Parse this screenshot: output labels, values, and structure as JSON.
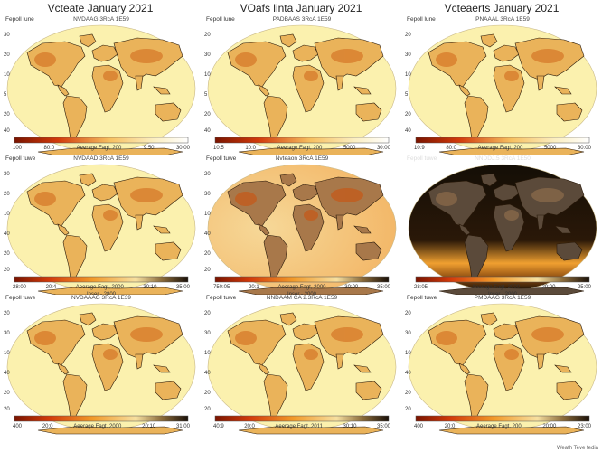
{
  "titles": [
    "Vcteate January 2021",
    "VOafs linta January 2021",
    "Vcteaerts January 2021"
  ],
  "credit": "Weath Teve fedia",
  "panels": [
    {
      "label": "Fepoll lune",
      "code": "NVDAAG 3RcA 1E59",
      "lat": [
        "30",
        "20",
        "10",
        "5",
        "20",
        "40"
      ],
      "ticks": [
        "100",
        "80:0",
        "Aeerage Fagt, 200",
        "9:50",
        "30:00"
      ],
      "sub": "",
      "theme": "light"
    },
    {
      "label": "Fepoll lune",
      "code": "PADBAAS 3RcA 1E59",
      "lat": [
        "20",
        "30",
        "10",
        "5",
        "20",
        "40"
      ],
      "ticks": [
        "10:5",
        "10:0",
        "Aeerage Fagt, 200",
        "5000",
        "30:00"
      ],
      "sub": "",
      "theme": "light"
    },
    {
      "label": "Fepoll lune",
      "code": "PNAAAL 3RcA 1E59",
      "lat": [
        "20",
        "30",
        "10",
        "5",
        "20",
        "40"
      ],
      "ticks": [
        "10:9",
        "80:0",
        "Aeerage Fagt, 200",
        "5000",
        "30:00"
      ],
      "sub": "",
      "theme": "light"
    },
    {
      "label": "Fepoll tuwe",
      "code": "NVDAAD 3RcA 1E59",
      "lat": [
        "30",
        "20",
        "10",
        "40",
        "20",
        "20"
      ],
      "ticks": [
        "28:00",
        "20:4",
        "Aeerage Fagt, 2000",
        "30:10",
        "35:00"
      ],
      "sub": "Inser - 2800",
      "theme": "light"
    },
    {
      "label": "Fepoll tuwe",
      "code": "Nvteaon 3RcA 1E59",
      "lat": [
        "20",
        "30",
        "10",
        "40",
        "20",
        "20"
      ],
      "ticks": [
        "750:05",
        "20:1",
        "Aeerage Fagt, 2000",
        "30:00",
        "35:00"
      ],
      "sub": "Inser - 2000",
      "theme": "warm"
    },
    {
      "label": "Fepoll tuwe",
      "code": "NNDDJ.5 3RcA 1E50",
      "lat": [
        "",
        "",
        "",
        "",
        "",
        ""
      ],
      "ticks": [
        "28:05",
        "",
        "Aeerage Fagt, 2000",
        "20:00",
        "25:00"
      ],
      "sub": "Inser - 2000",
      "theme": "dark"
    },
    {
      "label": "Fepoll tuwe",
      "code": "NVDAAAG 3RcA 1E39",
      "lat": [
        "20",
        "30",
        "10",
        "40",
        "20",
        "20"
      ],
      "ticks": [
        "400",
        "20:0",
        "Aeerage Fagt, 2000",
        "20:10",
        "31:00"
      ],
      "sub": "",
      "theme": "light"
    },
    {
      "label": "Fepoll tuwe",
      "code": "NNDAAM CA 2.3RcA 1E59",
      "lat": [
        "20",
        "30",
        "10",
        "40",
        "20",
        "20"
      ],
      "ticks": [
        "40:9",
        "20:0",
        "Aeerage Fagt, 2011",
        "30:10",
        "35:00"
      ],
      "sub": "",
      "theme": "light"
    },
    {
      "label": "Fepoll tuwe",
      "code": "PMDAAG 3RcA 1E59",
      "lat": [
        "20",
        "30",
        "10",
        "40",
        "20",
        "20"
      ],
      "ticks": [
        "400",
        "20:0",
        "Aeerage Fagt, 200",
        "20:00",
        "23:00"
      ],
      "sub": "",
      "theme": "light"
    }
  ],
  "colors": {
    "ocean_light": "#fbf1ae",
    "ocean_warm": "#f1c27a",
    "ocean_dark": "#151008",
    "land_light": "#eab35a",
    "land_hot": "#d77a2a",
    "land_dark": "#5b4a3a",
    "coast": "#2a1a0a",
    "warm_band": "#f0a030"
  }
}
